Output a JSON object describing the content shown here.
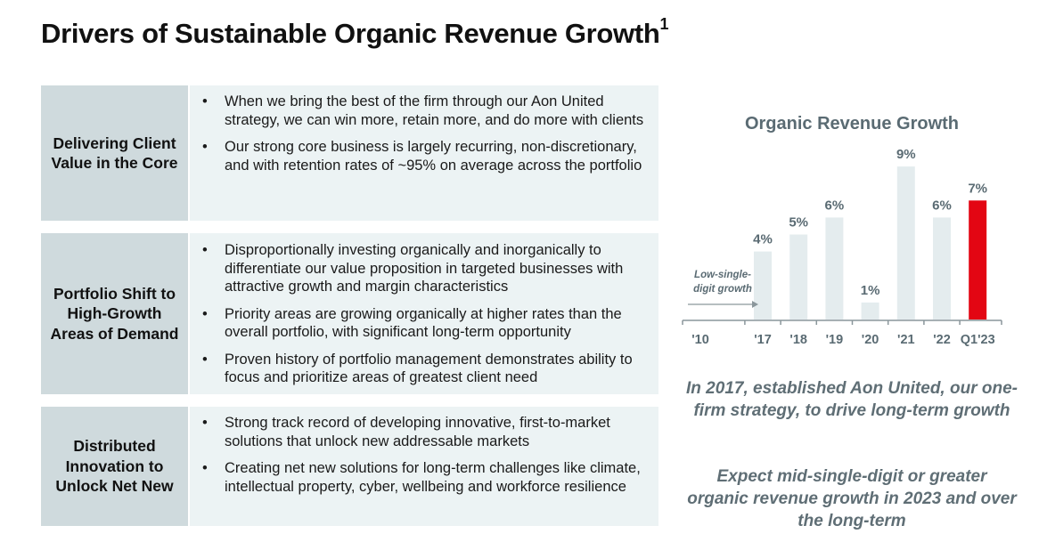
{
  "page": {
    "title": "Drivers of Sustainable Organic Revenue Growth",
    "title_footnote": "1"
  },
  "drivers": [
    {
      "label": "Delivering Client Value in the Core",
      "bullets": [
        "When we bring the best of the firm through our Aon United strategy, we can win more, retain more, and do more with clients",
        "Our strong core business is largely recurring, non-discretionary, and with retention rates of ~95% on average across the portfolio"
      ]
    },
    {
      "label": "Portfolio Shift to High-Growth Areas of Demand",
      "bullets": [
        "Disproportionally investing organically and inorganically to differentiate our value proposition in targeted businesses with attractive growth and margin characteristics",
        "Priority areas are growing organically at higher rates than the overall portfolio, with significant long-term opportunity",
        "Proven history of portfolio management demonstrates ability to focus and prioritize areas of greatest client need"
      ]
    },
    {
      "label": "Distributed Innovation to Unlock Net New",
      "bullets": [
        "Strong track record of developing innovative, first-to-market solutions that unlock new addressable markets",
        "Creating net new solutions for long-term challenges like climate, intellectual property, cyber, wellbeing and workforce resilience"
      ]
    }
  ],
  "bullet_glyph": "•",
  "chart_data": {
    "type": "bar",
    "title": "Organic Revenue Growth",
    "start_label": "'10",
    "annotation": "Low-single-digit growth",
    "annotation_lines": [
      "Low-single-",
      "digit growth"
    ],
    "categories": [
      "'17",
      "'18",
      "'19",
      "'20",
      "'21",
      "'22",
      "Q1'23"
    ],
    "values": [
      4,
      5,
      6,
      1,
      9,
      6,
      7
    ],
    "data_labels": [
      "4%",
      "5%",
      "6%",
      "1%",
      "9%",
      "6%",
      "7%"
    ],
    "unit": "%",
    "ylim": [
      0,
      10
    ],
    "grid": false,
    "colors": {
      "bar": "#e4ecee",
      "highlight": "#e30613",
      "axis": "#8a969b",
      "label": "#5a6b73"
    },
    "highlight_index": 6
  },
  "takeaways": [
    "In 2017, established Aon United, our one-firm strategy, to drive long-term growth",
    "Expect mid-single-digit or greater organic revenue growth in 2023 and over the long-term"
  ]
}
